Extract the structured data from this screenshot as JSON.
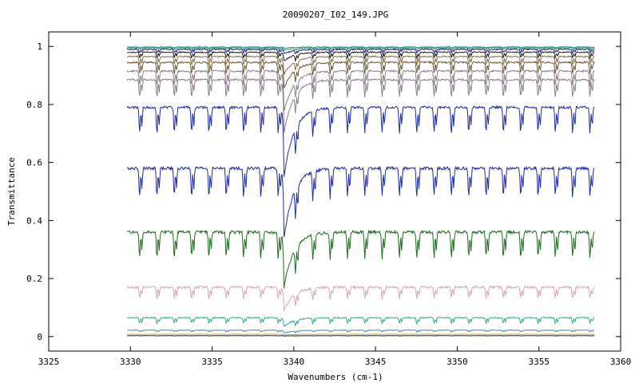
{
  "chart_data": {
    "type": "line",
    "title": "20090207_I02_149.JPG",
    "xlabel": "Wavenumbers (cm-1)",
    "ylabel": "Transmittance",
    "xlim": [
      3325,
      3360
    ],
    "ylim": [
      -0.05,
      1.05
    ],
    "x_ticks": [
      {
        "value": 3325,
        "label": "3325"
      },
      {
        "value": 3330,
        "label": "3330"
      },
      {
        "value": 3335,
        "label": "3335"
      },
      {
        "value": 3340,
        "label": "3340"
      },
      {
        "value": 3345,
        "label": "3345"
      },
      {
        "value": 3350,
        "label": "3350"
      },
      {
        "value": 3355,
        "label": "3355"
      },
      {
        "value": 3360,
        "label": "3360"
      }
    ],
    "y_ticks": [
      {
        "value": 0,
        "label": "0"
      },
      {
        "value": 0.2,
        "label": "0.2"
      },
      {
        "value": 0.4,
        "label": "0.4"
      },
      {
        "value": 0.6,
        "label": "0.6"
      },
      {
        "value": 0.8,
        "label": "0.8"
      },
      {
        "value": 1,
        "label": "1"
      }
    ],
    "grid": false,
    "legend": "none",
    "x_range": [
      3329.8,
      3358.4
    ],
    "line_spacing": 1.06,
    "strong_line_x": 3339.4,
    "series": [
      {
        "color": "#1f8f8f",
        "baseline": 0.998,
        "depth": 0.003,
        "strong": 0.004,
        "noise": 0.001
      },
      {
        "color": "#2a9d5a",
        "baseline": 0.995,
        "depth": 0.006,
        "strong": 0.008,
        "noise": 0.001
      },
      {
        "color": "#1a1a8c",
        "baseline": 0.99,
        "depth": 0.012,
        "strong": 0.015,
        "noise": 0.002
      },
      {
        "color": "#1a1a1a",
        "baseline": 0.98,
        "depth": 0.02,
        "strong": 0.03,
        "noise": 0.002
      },
      {
        "color": "#8b6f47",
        "baseline": 0.965,
        "depth": 0.03,
        "strong": 0.06,
        "noise": 0.002
      },
      {
        "color": "#6b5a3a",
        "baseline": 0.945,
        "depth": 0.04,
        "strong": 0.09,
        "noise": 0.003
      },
      {
        "color": "#8a7f8a",
        "baseline": 0.915,
        "depth": 0.05,
        "strong": 0.14,
        "noise": 0.003
      },
      {
        "color": "#8a7f8a",
        "baseline": 0.885,
        "depth": 0.06,
        "strong": 0.18,
        "noise": 0.003
      },
      {
        "color": "#1e2aa8",
        "baseline": 0.79,
        "depth": 0.09,
        "strong": 0.24,
        "noise": 0.004
      },
      {
        "color": "#1e2aa8",
        "baseline": 0.58,
        "depth": 0.1,
        "strong": 0.24,
        "noise": 0.005
      },
      {
        "color": "#1f6b1f",
        "baseline": 0.36,
        "depth": 0.09,
        "strong": 0.19,
        "noise": 0.005
      },
      {
        "color": "#d4a8b4",
        "baseline": 0.17,
        "depth": 0.04,
        "strong": 0.08,
        "noise": 0.004
      },
      {
        "color": "#3aa88a",
        "baseline": 0.065,
        "depth": 0.02,
        "strong": 0.03,
        "noise": 0.002
      },
      {
        "color": "#4a8ab8",
        "baseline": 0.022,
        "depth": 0.006,
        "strong": 0.01,
        "noise": 0.001
      },
      {
        "color": "#b8a040",
        "baseline": 0.008,
        "depth": 0.002,
        "strong": 0.003,
        "noise": 0.0005
      },
      {
        "color": "#333333",
        "baseline": 0.003,
        "depth": 0.001,
        "strong": 0.001,
        "noise": 0.0003
      }
    ]
  }
}
